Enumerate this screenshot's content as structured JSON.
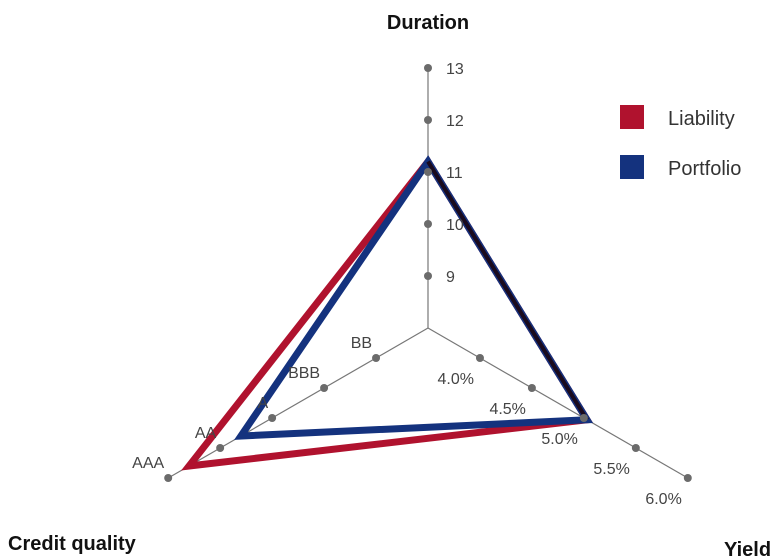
{
  "colors": {
    "liability": "#b0122e",
    "portfolio": "#14327e",
    "axis": "#777777",
    "tick_dot": "#6b6b6b",
    "text": "#333333"
  },
  "chart_data": {
    "type": "radar",
    "title": "",
    "axes": [
      {
        "name": "Duration",
        "ticks": [
          "9",
          "10",
          "11",
          "12",
          "13"
        ],
        "tick_values": [
          9,
          10,
          11,
          12,
          13
        ]
      },
      {
        "name": "Yield",
        "ticks": [
          "4.0%",
          "4.5%",
          "5.0%",
          "5.5%",
          "6.0%"
        ],
        "tick_values": [
          4.0,
          4.5,
          5.0,
          5.5,
          6.0
        ]
      },
      {
        "name": "Credit quality",
        "ticks": [
          "BB",
          "BBB",
          "A",
          "AA",
          "AAA"
        ],
        "tick_values": [
          1,
          2,
          3,
          4,
          5
        ]
      }
    ],
    "series": [
      {
        "name": "Liability",
        "values": {
          "Duration": 11.2,
          "Yield": 5.03,
          "Credit quality": "AA/AAA (4.6)"
        },
        "numeric": [
          11.2,
          5.03,
          4.6
        ]
      },
      {
        "name": "Portfolio",
        "values": {
          "Duration": 11.2,
          "Yield": 5.03,
          "Credit quality": "A/AA (3.6)"
        },
        "numeric": [
          11.2,
          5.03,
          3.6
        ]
      }
    ],
    "legend": {
      "position": "top-right"
    }
  }
}
